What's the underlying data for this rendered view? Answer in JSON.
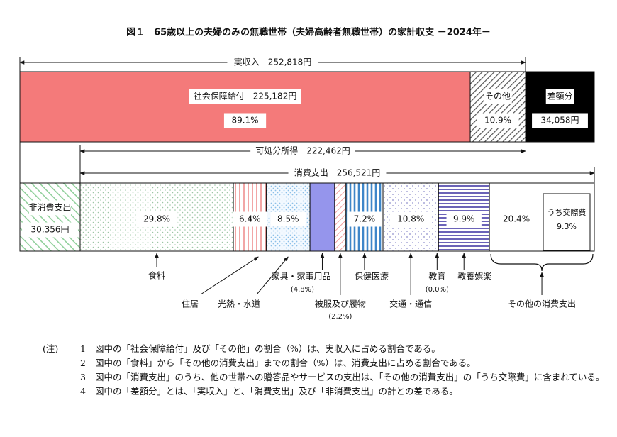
{
  "chart_data": {
    "type": "bar",
    "title": "図１　65歳以上の夫婦のみの無職世帯（夫婦高齢者無職世帯）の家計収支 －2024年－",
    "income": {
      "label": "実収入",
      "total_text": "252,818円",
      "segments": [
        {
          "name": "社会保障給付",
          "value": 225182,
          "value_text": "225,182円",
          "percent_text": "89.1%",
          "color": "#f47a7a"
        },
        {
          "name": "その他",
          "value": 27636,
          "percent_text": "10.9%",
          "color": "#ffffff"
        }
      ],
      "deficit": {
        "name": "差額分",
        "value": 34058,
        "value_text": "34,058円",
        "color": "#000000"
      }
    },
    "disposable": {
      "label": "可処分所得",
      "value_text": "222,462円"
    },
    "expenditure": {
      "label": "消費支出",
      "total_text": "256,521円",
      "non_consumption": {
        "name": "非消費支出",
        "value": 30356,
        "value_text": "30,356円"
      },
      "segments": [
        {
          "name": "食料",
          "percent": 29.8,
          "percent_text": "29.8%"
        },
        {
          "name": "住居",
          "percent": 6.4,
          "percent_text": "6.4%"
        },
        {
          "name": "光熱・水道",
          "percent": 8.5,
          "percent_text": "8.5%"
        },
        {
          "name": "家具・家事用品",
          "percent": 4.8,
          "percent_text": "(4.8%)"
        },
        {
          "name": "被服及び履物",
          "percent": 2.2,
          "percent_text": "(2.2%)"
        },
        {
          "name": "保健医療",
          "percent": 7.2,
          "percent_text": "7.2%"
        },
        {
          "name": "交通・通信",
          "percent": 10.8,
          "percent_text": "10.8%"
        },
        {
          "name": "教育",
          "percent": 0.0,
          "percent_text": "(0.0%)"
        },
        {
          "name": "教養娯楽",
          "percent": 9.9,
          "percent_text": "9.9%"
        },
        {
          "name": "その他の消費支出",
          "percent": 20.4,
          "percent_text": "20.4%"
        }
      ],
      "sub_item": {
        "name": "うち交際費",
        "percent_text": "9.3%"
      }
    }
  },
  "notes": {
    "head": "(注)",
    "items": [
      {
        "num": "1",
        "text": "図中の「社会保障給付」及び「その他」の割合（%）は、実収入に占める割合である。"
      },
      {
        "num": "2",
        "text": "図中の「食料」から「その他の消費支出」までの割合（%）は、消費支出に占める割合である。"
      },
      {
        "num": "3",
        "text": "図中の「消費支出」のうち、他の世帯への贈答品やサービスの支出は、「その他の消費支出」の「うち交際費」に含まれている。"
      },
      {
        "num": "4",
        "text": "図中の「差額分」とは、「実収入」と、「消費支出」及び「非消費支出」の計との差である。"
      }
    ]
  }
}
